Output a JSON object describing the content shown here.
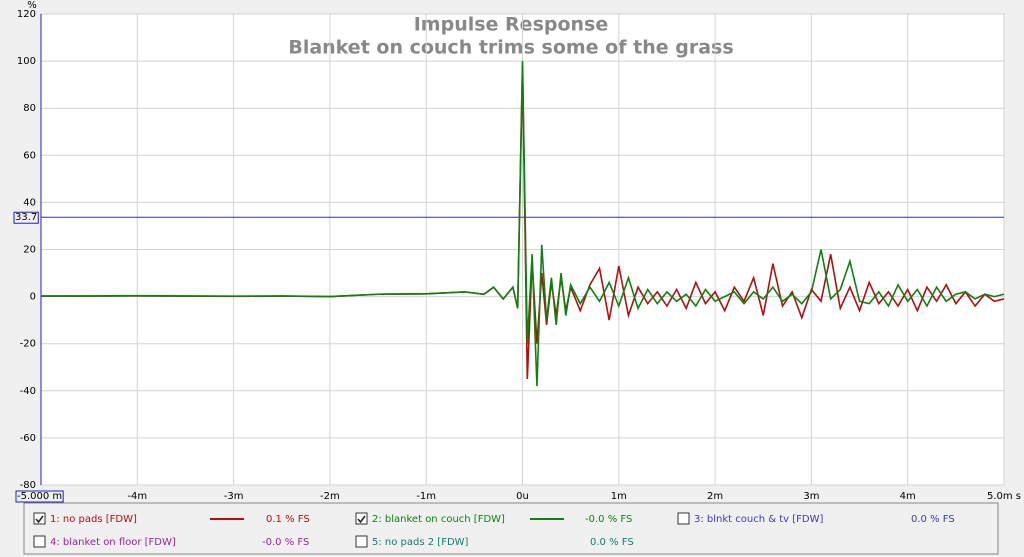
{
  "chart_data": {
    "type": "line",
    "title": "Impulse Response",
    "subtitle": "Blanket on couch trims some of the grass",
    "y_unit": "%",
    "cursor_y": 33.7,
    "xlim": [
      -5,
      5
    ],
    "ylim": [
      -80,
      120
    ],
    "xticks": [
      {
        "value": -5,
        "label": "-5.000 m"
      },
      {
        "value": -4,
        "label": "-4m"
      },
      {
        "value": -3,
        "label": "-3m"
      },
      {
        "value": -2,
        "label": "-2m"
      },
      {
        "value": -1,
        "label": "-1m"
      },
      {
        "value": 0,
        "label": "0u"
      },
      {
        "value": 1,
        "label": "1m"
      },
      {
        "value": 2,
        "label": "2m"
      },
      {
        "value": 3,
        "label": "3m"
      },
      {
        "value": 4,
        "label": "4m"
      },
      {
        "value": 5,
        "label": "5.0m s"
      }
    ],
    "yticks": [
      -80,
      -60,
      -40,
      -20,
      0,
      20,
      40,
      60,
      80,
      100,
      120
    ],
    "grid": true,
    "x": [
      -5,
      -4.5,
      -4,
      -3.5,
      -3,
      -2.5,
      -2,
      -1.5,
      -1,
      -0.6,
      -0.4,
      -0.3,
      -0.2,
      -0.1,
      -0.05,
      0,
      0.05,
      0.1,
      0.15,
      0.2,
      0.25,
      0.3,
      0.35,
      0.4,
      0.45,
      0.5,
      0.6,
      0.7,
      0.8,
      0.9,
      1.0,
      1.1,
      1.2,
      1.3,
      1.4,
      1.5,
      1.6,
      1.7,
      1.8,
      1.9,
      2.0,
      2.1,
      2.2,
      2.3,
      2.4,
      2.5,
      2.6,
      2.7,
      2.8,
      2.9,
      3.0,
      3.1,
      3.2,
      3.3,
      3.4,
      3.5,
      3.6,
      3.7,
      3.8,
      3.9,
      4.0,
      4.1,
      4.2,
      4.3,
      4.4,
      4.5,
      4.6,
      4.7,
      4.8,
      4.9,
      5.0
    ],
    "series": [
      {
        "name": "1: no pads [FDW]",
        "color": "#b01010",
        "readout": "0.1 % FS",
        "checked": true,
        "values": [
          0.2,
          0.2,
          0.3,
          0.2,
          0.1,
          0.2,
          0,
          1,
          1.2,
          2,
          1,
          4,
          -1,
          4,
          -5,
          98,
          -35,
          15,
          -20,
          10,
          -12,
          6,
          -8,
          8,
          -6,
          4,
          -6,
          5,
          12,
          -10,
          13,
          -8,
          4,
          -3,
          2,
          -4,
          3,
          -5,
          6,
          -3,
          2,
          -6,
          4,
          -2,
          8,
          -8,
          14,
          -4,
          2,
          -9,
          3,
          -2,
          18,
          -5,
          4,
          -6,
          6,
          -3,
          2,
          -4,
          3,
          -6,
          4,
          -2,
          5,
          -3,
          2,
          -4,
          1,
          -2,
          -1
        ]
      },
      {
        "name": "2: blanket on couch [FDW]",
        "color": "#108010",
        "readout": "-0.0 % FS",
        "checked": true,
        "values": [
          0.3,
          0.3,
          0.4,
          0.3,
          0.2,
          0.3,
          0,
          1,
          1.2,
          2,
          1,
          4,
          -1,
          4,
          -5,
          100,
          -20,
          18,
          -38,
          22,
          -10,
          8,
          -12,
          10,
          -8,
          5,
          -3,
          4,
          -2,
          6,
          -4,
          8,
          -5,
          3,
          -3,
          2,
          -2,
          1,
          -4,
          3,
          -2,
          0,
          2,
          -3,
          2,
          -1,
          4,
          -2,
          1,
          -3,
          2,
          20,
          -1,
          3,
          15,
          -2,
          -3,
          2,
          -4,
          5,
          -2,
          3,
          -4,
          4,
          -2,
          1,
          2,
          -1,
          1,
          0,
          1
        ]
      },
      {
        "name": "3: blnkt couch & tv [FDW]",
        "color": "#3c3caf",
        "readout": "0.0 % FS",
        "checked": false
      },
      {
        "name": "4: blanket on floor [FDW]",
        "color": "#a020a0",
        "readout": "-0.0 % FS",
        "checked": false
      },
      {
        "name": "5: no pads 2 [FDW]",
        "color": "#108070",
        "readout": "0.0 % FS",
        "checked": false
      }
    ]
  }
}
